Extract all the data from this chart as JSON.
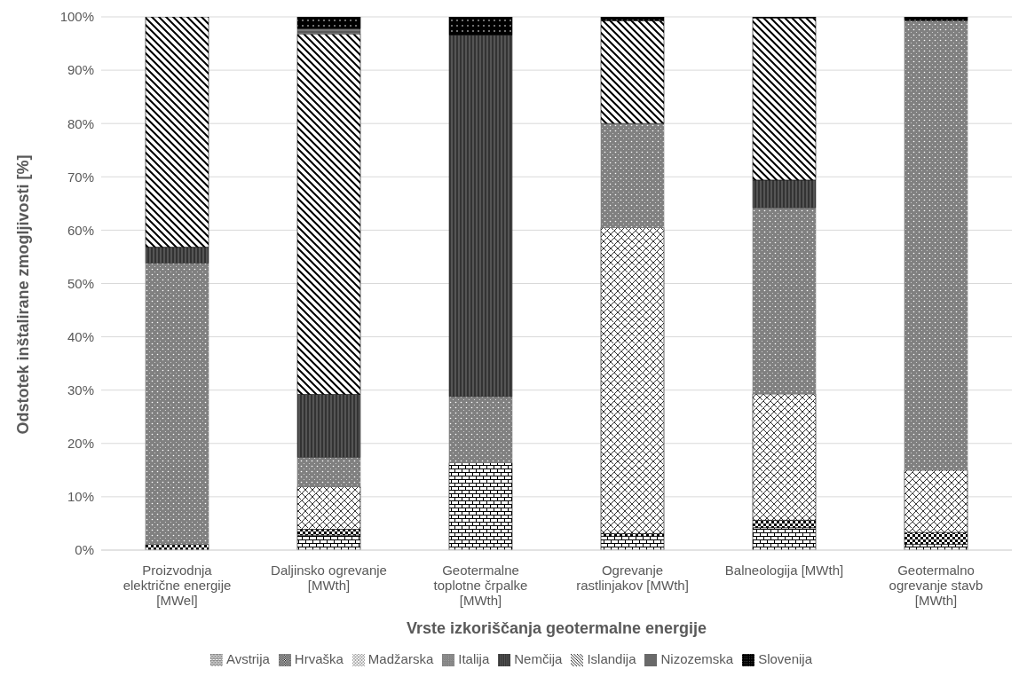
{
  "chart_data": {
    "type": "bar",
    "stacked": true,
    "xlabel": "Vrste izkoriščanja geotermalne energije",
    "ylabel": "Odstotek inštalirane zmogljivosti [%]",
    "categories": [
      "Proizvodnja električne energije [MWel]",
      "Daljinsko ogrevanje [MWth]",
      "Geotermalne toplotne črpalke [MWth]",
      "Ogrevanje rastlinjakov [MWth]",
      "Balneologija [MWth]",
      "Geotermalno ogrevanje stavb [MWth]"
    ],
    "series": [
      {
        "name": "Avstrija",
        "color": "#000000",
        "values": [
          0,
          2.8,
          16.4,
          2.6,
          4.2,
          1.1
        ]
      },
      {
        "name": "Hrvaška",
        "color": "#000000",
        "values": [
          1.1,
          1.1,
          0,
          0.5,
          1.4,
          2.2
        ]
      },
      {
        "name": "Madžarska",
        "color": "#000000",
        "values": [
          0,
          8.0,
          0,
          57.4,
          23.7,
          11.7
        ]
      },
      {
        "name": "Italija",
        "color": "#808080",
        "values": [
          52.7,
          5.5,
          12.4,
          19.5,
          34.9,
          84.3
        ]
      },
      {
        "name": "Nemčija",
        "color": "#333333",
        "values": [
          3.0,
          11.8,
          67.8,
          0,
          5.2,
          0
        ]
      },
      {
        "name": "Islandija",
        "color": "#000000",
        "values": [
          43.2,
          67.6,
          0,
          19.3,
          30.4,
          0
        ]
      },
      {
        "name": "Nizozemska",
        "color": "#595959",
        "values": [
          0,
          1.0,
          0,
          0,
          0,
          0
        ]
      },
      {
        "name": "Slovenija",
        "color": "#000000",
        "values": [
          0,
          2.2,
          3.4,
          0.7,
          0.2,
          0.7
        ]
      }
    ],
    "ylim": [
      0,
      100
    ],
    "yticks": [
      {
        "value": 0,
        "label": "0%"
      },
      {
        "value": 10,
        "label": "10%"
      },
      {
        "value": 20,
        "label": "20%"
      },
      {
        "value": 30,
        "label": "30%"
      },
      {
        "value": 40,
        "label": "40%"
      },
      {
        "value": 50,
        "label": "50%"
      },
      {
        "value": 60,
        "label": "60%"
      },
      {
        "value": 70,
        "label": "70%"
      },
      {
        "value": 80,
        "label": "80%"
      },
      {
        "value": 90,
        "label": "90%"
      },
      {
        "value": 100,
        "label": "100%"
      }
    ],
    "grid": "y",
    "legend": "bottom"
  }
}
